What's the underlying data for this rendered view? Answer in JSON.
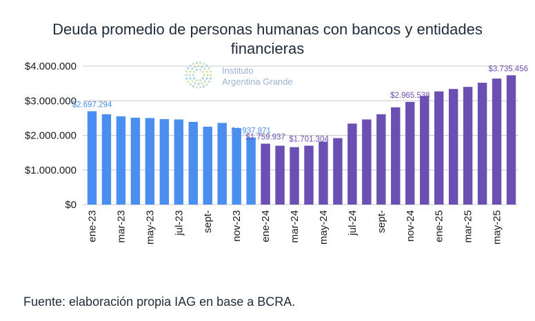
{
  "logo": {
    "line1": "Instituto",
    "line2": "Argentina Grande"
  },
  "source": "Fuente: elaboración propia IAG en base a BCRA.",
  "chart_data": {
    "type": "bar",
    "title": "Deuda promedio de personas humanas con bancos y entidades financieras",
    "title_lines": [
      "Deuda promedio de personas humanas con bancos y entidades",
      "financieras"
    ],
    "xlabel": "",
    "ylabel": "",
    "ylim": [
      0,
      4000000
    ],
    "yticks": [
      0,
      1000000,
      2000000,
      3000000,
      4000000
    ],
    "ytick_labels": [
      "$0",
      "$1.000.000",
      "$2.000.000",
      "$3.000.000",
      "$4.000.000"
    ],
    "grid": true,
    "colors": {
      "period_1": "#4a8ff0",
      "period_2": "#6b4fb3"
    },
    "categories": [
      "ene-23",
      "feb-23",
      "mar-23",
      "abr-23",
      "may-23",
      "jun-23",
      "jul-23",
      "ago-23",
      "sept-",
      "oct-23",
      "nov-23",
      "dic-23",
      "ene-24",
      "feb-24",
      "mar-24",
      "abr-24",
      "may-24",
      "jun-24",
      "jul-24",
      "ago-24",
      "sept-",
      "oct-24",
      "nov-24",
      "dic-24",
      "ene-25",
      "feb-25",
      "mar-25",
      "abr-25",
      "may-25",
      "jun-25"
    ],
    "visible_tick_labels": [
      "ene-23",
      "",
      "mar-23",
      "",
      "may-23",
      "",
      "jul-23",
      "",
      "sept-",
      "",
      "nov-23",
      "",
      "ene-24",
      "",
      "mar-24",
      "",
      "may-24",
      "",
      "jul-24",
      "",
      "sept-",
      "",
      "nov-24",
      "",
      "ene-25",
      "",
      "mar-25",
      "",
      "may-25",
      ""
    ],
    "values": [
      2697294,
      2610000,
      2550000,
      2510000,
      2500000,
      2470000,
      2460000,
      2390000,
      2250000,
      2360000,
      2210000,
      1937871,
      1759937,
      1700000,
      1660000,
      1701304,
      1820000,
      1920000,
      2340000,
      2460000,
      2610000,
      2810000,
      2965538,
      3140000,
      3270000,
      3340000,
      3400000,
      3520000,
      3640000,
      3735456
    ],
    "bar_color_group": [
      1,
      1,
      1,
      1,
      1,
      1,
      1,
      1,
      1,
      1,
      1,
      1,
      2,
      2,
      2,
      2,
      2,
      2,
      2,
      2,
      2,
      2,
      2,
      2,
      2,
      2,
      2,
      2,
      2,
      2
    ],
    "data_labels": [
      {
        "index": 0,
        "text": "$2.697.294"
      },
      {
        "index": 11,
        "text": "$1.937.871"
      },
      {
        "index": 12,
        "text": "$1.759.937"
      },
      {
        "index": 15,
        "text": "$1.701.304"
      },
      {
        "index": 22,
        "text": "$2.965.538"
      },
      {
        "index": 29,
        "text": "$3.735.456"
      }
    ]
  }
}
